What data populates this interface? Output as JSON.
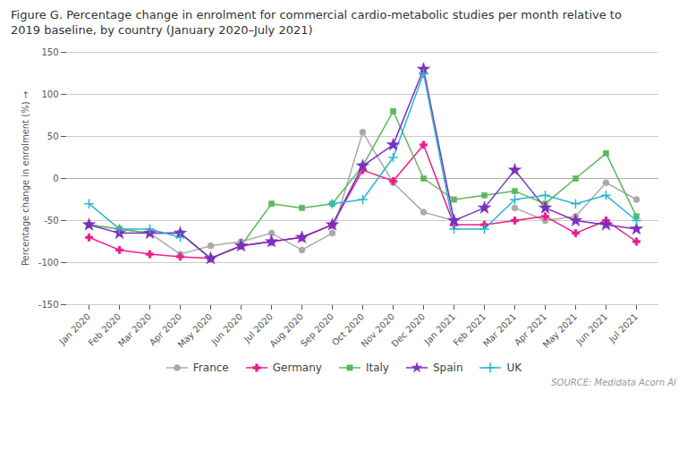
{
  "chart_data": {
    "type": "line",
    "title": "Figure G. Percentage change in enrolment for commercial cardio-metabolic studies per month relative to",
    "subtitle": "2019 baseline, by country (January 2020–July 2021)",
    "source": "SOURCE: Medidata Acorn AI",
    "ylabel": "Percentage change in enrolment (%)",
    "categories": [
      "Jan 2020",
      "Feb 2020",
      "Mar 2020",
      "Apr 2020",
      "May 2020",
      "Jun 2020",
      "Jul 2020",
      "Aug 2020",
      "Sep 2020",
      "Oct 2020",
      "Nov 2020",
      "Dec 2020",
      "Jan 2021",
      "Feb 2021",
      "Mar 2021",
      "Apr 2021",
      "May 2021",
      "Jun 2021",
      "Jul 2021"
    ],
    "series": [
      {
        "name": "France",
        "color": "#aaaaaa",
        "marker": "circle",
        "values": [
          -55,
          -60,
          -65,
          -90,
          -80,
          -75,
          -65,
          -85,
          -65,
          55,
          -5,
          -40,
          -50,
          null,
          -35,
          -50,
          -45,
          -5,
          -25
        ]
      },
      {
        "name": "Germany",
        "color": "#e91e8c",
        "marker": "cross",
        "values": [
          -70,
          -85,
          -90,
          -93,
          -95,
          -80,
          -75,
          -70,
          -55,
          10,
          -3,
          40,
          -55,
          -55,
          -50,
          -45,
          -65,
          -50,
          -75
        ]
      },
      {
        "name": "Italy",
        "color": "#5cb85c",
        "marker": "square",
        "values": [
          -55,
          -60,
          -65,
          -65,
          -95,
          -80,
          -30,
          -35,
          -30,
          15,
          80,
          0,
          -25,
          -20,
          -15,
          -30,
          0,
          30,
          -45
        ]
      },
      {
        "name": "Spain",
        "color": "#7b2fbe",
        "marker": "star",
        "values": [
          -55,
          -65,
          -65,
          -65,
          -95,
          -80,
          -75,
          -70,
          -55,
          15,
          40,
          130,
          -50,
          -35,
          10,
          -35,
          -50,
          -55,
          -60
        ]
      },
      {
        "name": "UK",
        "color": "#29b6d4",
        "marker": "plus",
        "values": [
          -30,
          -60,
          -60,
          -70,
          null,
          null,
          null,
          null,
          -30,
          -25,
          25,
          125,
          -60,
          -60,
          -25,
          -20,
          -30,
          -20,
          -50
        ]
      }
    ],
    "ylim": [
      -150,
      150
    ],
    "yticks": [
      -150,
      -100,
      -50,
      0,
      50,
      100,
      150
    ],
    "grid": true,
    "legend": "bottom"
  }
}
